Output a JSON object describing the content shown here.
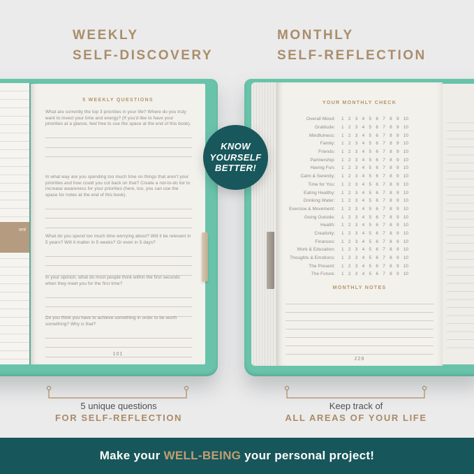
{
  "colors": {
    "background": "#ebebec",
    "heading_tan": "#aa8d69",
    "page_cream": "#f3f1ec",
    "cover_mint": "#69c3ab",
    "dark_teal": "#17565a",
    "banner_highlight_tan": "#c19e74",
    "body_text_gray": "#8f8c85"
  },
  "headings": {
    "left": "WEEKLY\nSELF-DISCOVERY",
    "right": "MONTHLY\nSELF-REFLECTION"
  },
  "badge": {
    "lines": [
      "KNOW",
      "YOURSELF",
      "BETTER!"
    ]
  },
  "left_book": {
    "page_title": "5 WEEKLY QUESTIONS",
    "questions": [
      "What are currently the top 3 priorities in your life? Where do you truly want to invest your time and energy? (If you'd like to have your priorities at a glance, feel free to use the space at the end of this book).",
      "In what way are you spending too much time on things that aren't your priorities and how could you cut back on that? Create a not-to-do list to increase awareness for your priorities (here, too, you can use the space for notes at the end of this book).",
      "What do you spend too much time worrying about? Will it be relevant in 5 years? Will it matter in 5 weeks? Or even in 5 days?",
      "In your opinion, what do most people think within the first seconds when they meet you for the first time?",
      "Do you think you have to achieve something in order to be worth something? Why is that?"
    ],
    "page_number": "101",
    "side_note_fragment": "ent"
  },
  "right_book": {
    "page_title": "YOUR MONTHLY CHECK",
    "scale_numbers": [
      "1",
      "2",
      "3",
      "4",
      "5",
      "6",
      "7",
      "8",
      "9",
      "10"
    ],
    "categories": [
      "Overall Mood:",
      "Gratitude:",
      "Mindfulness:",
      "Family:",
      "Friends:",
      "Partnership:",
      "Having Fun:",
      "Calm & Serenity:",
      "Time for You:",
      "Eating Healthy:",
      "Drinking Water:",
      "Exercise & Movement:",
      "Going Outside:",
      "Health:",
      "Creativity:",
      "Finances:",
      "Work & Education:",
      "Thoughts & Emotions:",
      "The Present:",
      "The Future:"
    ],
    "notes_title": "MONTHLY NOTES",
    "page_number": "228"
  },
  "captions": {
    "left": {
      "line1": "5 unique questions",
      "line2": "FOR SELF-REFLECTION"
    },
    "right": {
      "line1": "Keep track of",
      "line2": "ALL AREAS OF YOUR LIFE"
    }
  },
  "banner": {
    "prefix": "Make your",
    "highlight": "WELL-BEING",
    "suffix": "your personal project!"
  }
}
